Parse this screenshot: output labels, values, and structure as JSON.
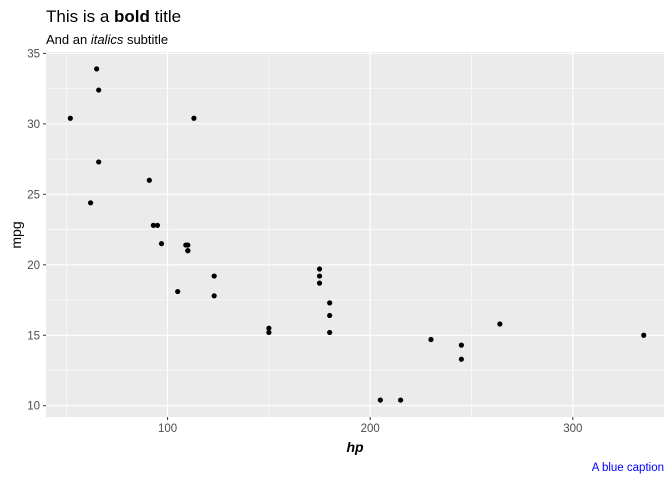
{
  "chart_data": {
    "type": "scatter",
    "title": {
      "prefix": "This is a ",
      "bold": "bold",
      "suffix": " title"
    },
    "subtitle": {
      "prefix": "And an ",
      "italic": "italics",
      "suffix": " subtitle"
    },
    "caption": "A blue caption",
    "caption_color": "#0000ff",
    "xlabel": "hp",
    "ylabel": "mpg",
    "xlim": [
      40,
      345
    ],
    "ylim": [
      9.2,
      35.1
    ],
    "x_ticks": [
      100,
      200,
      300
    ],
    "y_ticks": [
      10,
      15,
      20,
      25,
      30,
      35
    ],
    "grid": true,
    "panel_color": "#ebebeb",
    "point_color": "#000000",
    "points": [
      {
        "x": 110,
        "y": 21.0
      },
      {
        "x": 110,
        "y": 21.0
      },
      {
        "x": 93,
        "y": 22.8
      },
      {
        "x": 110,
        "y": 21.4
      },
      {
        "x": 175,
        "y": 18.7
      },
      {
        "x": 105,
        "y": 18.1
      },
      {
        "x": 245,
        "y": 14.3
      },
      {
        "x": 62,
        "y": 24.4
      },
      {
        "x": 95,
        "y": 22.8
      },
      {
        "x": 123,
        "y": 19.2
      },
      {
        "x": 123,
        "y": 17.8
      },
      {
        "x": 180,
        "y": 16.4
      },
      {
        "x": 180,
        "y": 17.3
      },
      {
        "x": 180,
        "y": 15.2
      },
      {
        "x": 205,
        "y": 10.4
      },
      {
        "x": 215,
        "y": 10.4
      },
      {
        "x": 230,
        "y": 14.7
      },
      {
        "x": 66,
        "y": 32.4
      },
      {
        "x": 52,
        "y": 30.4
      },
      {
        "x": 65,
        "y": 33.9
      },
      {
        "x": 97,
        "y": 21.5
      },
      {
        "x": 150,
        "y": 15.5
      },
      {
        "x": 150,
        "y": 15.2
      },
      {
        "x": 245,
        "y": 13.3
      },
      {
        "x": 175,
        "y": 19.2
      },
      {
        "x": 66,
        "y": 27.3
      },
      {
        "x": 91,
        "y": 26.0
      },
      {
        "x": 113,
        "y": 30.4
      },
      {
        "x": 264,
        "y": 15.8
      },
      {
        "x": 175,
        "y": 19.7
      },
      {
        "x": 335,
        "y": 15.0
      },
      {
        "x": 109,
        "y": 21.4
      }
    ]
  }
}
